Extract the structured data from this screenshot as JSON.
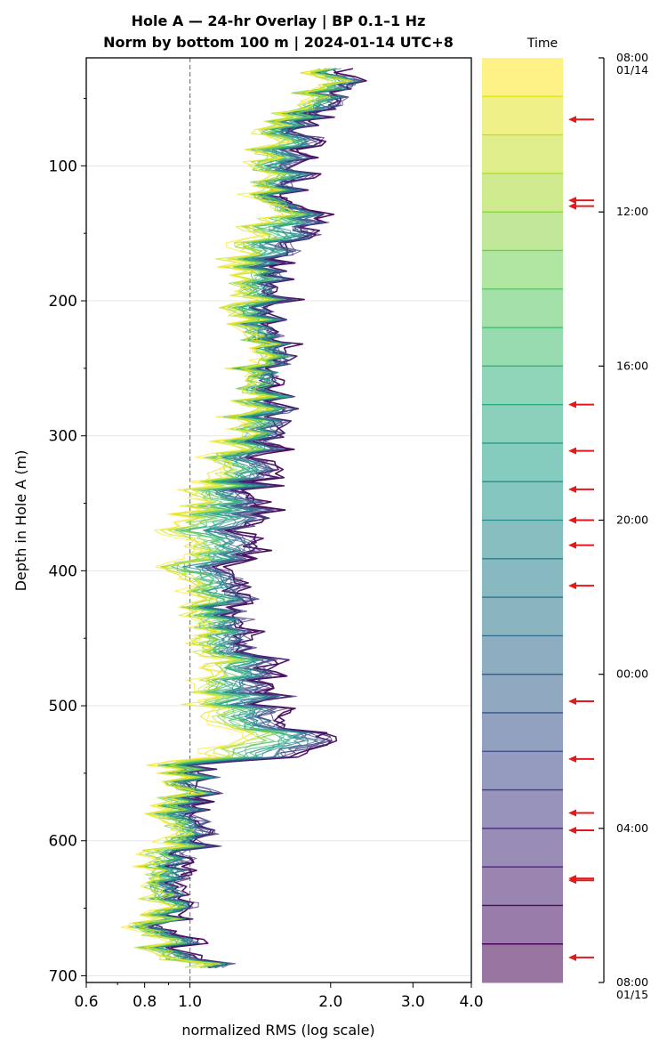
{
  "chart_data": {
    "type": "line",
    "title_line1": "Hole A — 24-hr Overlay  |  BP 0.1–1 Hz",
    "title_line2": "Norm by bottom 100 m  |  2024-01-14 UTC+8",
    "xlabel": "normalized RMS  (log scale)",
    "ylabel": "Depth in Hole A (m)",
    "x_scale": "log",
    "xlim": [
      0.6,
      4.0
    ],
    "ylim": [
      705,
      20
    ],
    "x_ticks": [
      0.6,
      0.8,
      1.0,
      2.0,
      3.0,
      4.0
    ],
    "x_tick_labels": [
      "0.6",
      "0.8",
      "1.0",
      "2.0",
      "3.0",
      "4.0"
    ],
    "y_ticks": [
      100,
      200,
      300,
      400,
      500,
      600,
      700
    ],
    "y_tick_labels": [
      "100",
      "200",
      "300",
      "400",
      "500",
      "600",
      "700"
    ],
    "reference_line_x": 1.0,
    "depth_range": [
      28,
      695
    ],
    "grid": "horizontal",
    "series_count": 24,
    "profile_depths": [
      28,
      40,
      60,
      80,
      100,
      120,
      130,
      145,
      160,
      180,
      200,
      230,
      260,
      290,
      315,
      330,
      345,
      360,
      380,
      400,
      420,
      440,
      460,
      480,
      500,
      520,
      530,
      545,
      560,
      580,
      600,
      620,
      640,
      660,
      680,
      695
    ],
    "profile_early": [
      1.85,
      1.9,
      1.6,
      1.45,
      1.4,
      1.4,
      1.6,
      1.35,
      1.25,
      1.3,
      1.3,
      1.4,
      1.35,
      1.3,
      1.15,
      1.1,
      1.05,
      0.95,
      0.95,
      0.95,
      1.0,
      1.05,
      1.1,
      1.05,
      1.1,
      1.3,
      1.2,
      0.9,
      0.95,
      0.85,
      0.95,
      0.8,
      0.85,
      0.82,
      0.85,
      1.05
    ],
    "profile_late": [
      2.05,
      2.1,
      1.85,
      1.75,
      1.7,
      1.6,
      1.7,
      1.9,
      1.6,
      1.55,
      1.55,
      1.55,
      1.5,
      1.55,
      1.4,
      1.45,
      1.35,
      1.45,
      1.3,
      1.25,
      1.25,
      1.3,
      1.4,
      1.45,
      1.55,
      1.8,
      2.1,
      1.0,
      1.05,
      1.0,
      1.1,
      0.95,
      0.95,
      0.9,
      0.95,
      1.2
    ],
    "colorbar": {
      "label": "Time",
      "tick_labels": [
        "08:00",
        "12:00",
        "16:00",
        "20:00",
        "00:00",
        "04:00",
        "08:00"
      ],
      "tick_sublabels": [
        "01/14",
        "",
        "",
        "",
        "",
        "",
        "01/15"
      ],
      "tick_hours": [
        0,
        4,
        8,
        12,
        16,
        20,
        24
      ],
      "band_count": 24,
      "marker_color": "#e31a1c",
      "marker_hours": [
        1.6,
        3.7,
        3.85,
        9.0,
        10.2,
        11.2,
        12.0,
        12.65,
        13.7,
        16.7,
        18.2,
        19.6,
        20.05,
        21.3,
        21.35,
        23.35
      ]
    },
    "colormap": [
      "#440154",
      "#482878",
      "#3e4989",
      "#31688e",
      "#26828e",
      "#1f9e89",
      "#35b779",
      "#6ece58",
      "#b5de2b",
      "#fde725"
    ]
  }
}
